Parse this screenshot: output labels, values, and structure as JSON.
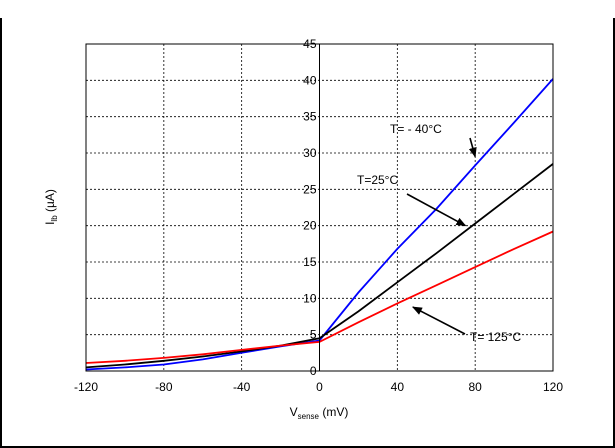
{
  "chart_data": {
    "type": "line",
    "title": "",
    "xlabel": {
      "main": "V",
      "sub": "sense",
      "rest": " (mV)"
    },
    "ylabel": {
      "main": "I",
      "sub": "lb",
      "rest": " (µA)"
    },
    "xlim": [
      -120,
      120
    ],
    "ylim": [
      0,
      45
    ],
    "x_ticks": [
      -120,
      -80,
      -40,
      0,
      40,
      80,
      120
    ],
    "y_ticks": [
      0,
      5,
      10,
      15,
      20,
      25,
      30,
      35,
      40,
      45
    ],
    "grid": true,
    "series": [
      {
        "color": "#0000ff",
        "x": [
          -120,
          -100,
          -80,
          -60,
          -40,
          -20,
          0,
          20,
          40,
          60,
          80,
          100,
          120
        ],
        "y": [
          0.2,
          0.5,
          0.9,
          1.6,
          2.5,
          3.4,
          4.2,
          10.8,
          16.8,
          22.3,
          28.3,
          34.2,
          40.2
        ]
      },
      {
        "color": "#000000",
        "x": [
          -120,
          -100,
          -80,
          -60,
          -40,
          -20,
          0,
          20,
          40,
          60,
          80,
          100,
          120
        ],
        "y": [
          0.5,
          0.9,
          1.4,
          2.0,
          2.7,
          3.5,
          4.5,
          8.2,
          12.2,
          16.2,
          20.3,
          24.4,
          28.5
        ]
      },
      {
        "color": "#ff0000",
        "x": [
          -120,
          -100,
          -80,
          -60,
          -40,
          -20,
          0,
          20,
          40,
          60,
          80,
          100,
          120
        ],
        "y": [
          1.1,
          1.4,
          1.8,
          2.3,
          2.9,
          3.5,
          4.0,
          6.7,
          9.3,
          11.8,
          14.3,
          16.8,
          19.2
        ]
      }
    ],
    "annotations": [
      {
        "text": "T= - 40°C",
        "arrow_to": [
          80,
          29.5
        ]
      },
      {
        "text": "T=25°C",
        "arrow_to": [
          75,
          20
        ]
      },
      {
        "text": "T= 125°C",
        "arrow_to": [
          48,
          8.8
        ]
      }
    ]
  }
}
